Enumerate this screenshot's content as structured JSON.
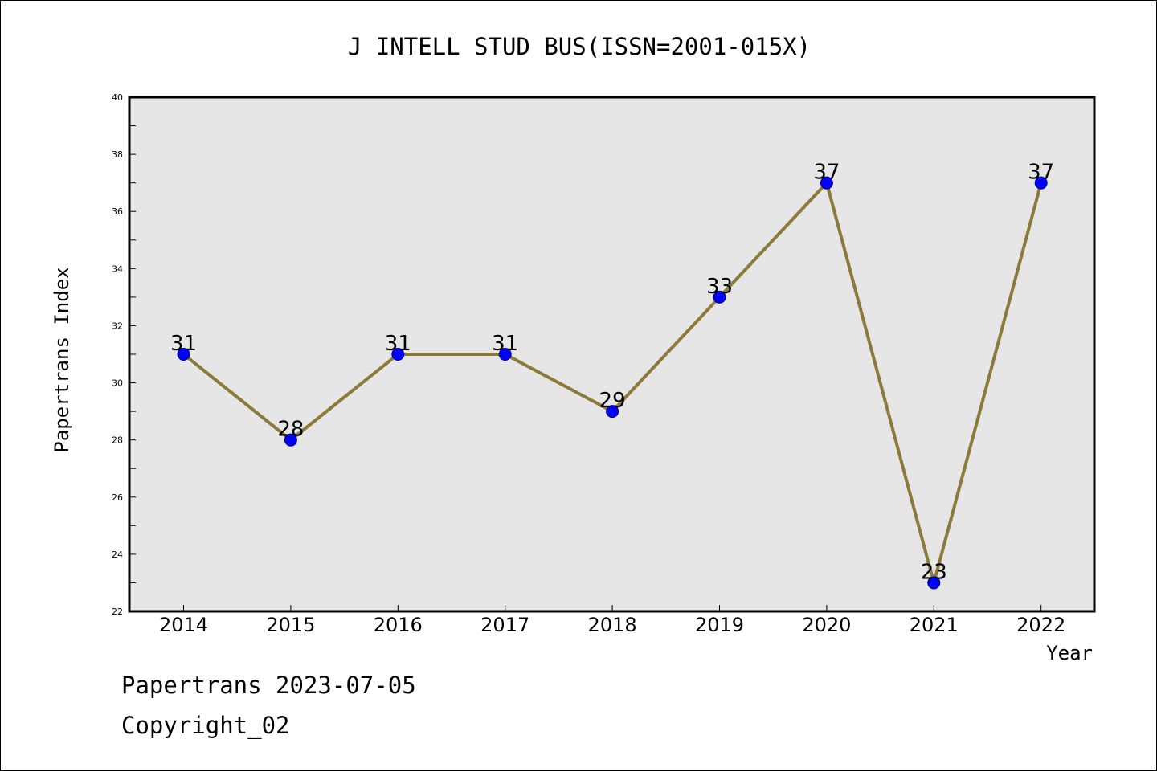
{
  "chart_data": {
    "type": "line",
    "title": "J INTELL STUD BUS(ISSN=2001-015X)",
    "xlabel": "Year",
    "ylabel": "Papertrans Index",
    "categories": [
      "2014",
      "2015",
      "2016",
      "2017",
      "2018",
      "2019",
      "2020",
      "2021",
      "2022"
    ],
    "values": [
      31,
      28,
      31,
      31,
      29,
      33,
      37,
      23,
      37
    ],
    "ylim": [
      22,
      40
    ],
    "y_ticks": [
      22,
      24,
      26,
      28,
      30,
      32,
      34,
      36,
      38,
      40
    ],
    "grid": false,
    "legend": "none",
    "colors": {
      "line": "#8b7a3a",
      "marker": "#0000ff",
      "plot_background": "#e6e6e6"
    }
  },
  "footer": {
    "line1": "Papertrans 2023-07-05",
    "line2": "Copyright_02"
  }
}
